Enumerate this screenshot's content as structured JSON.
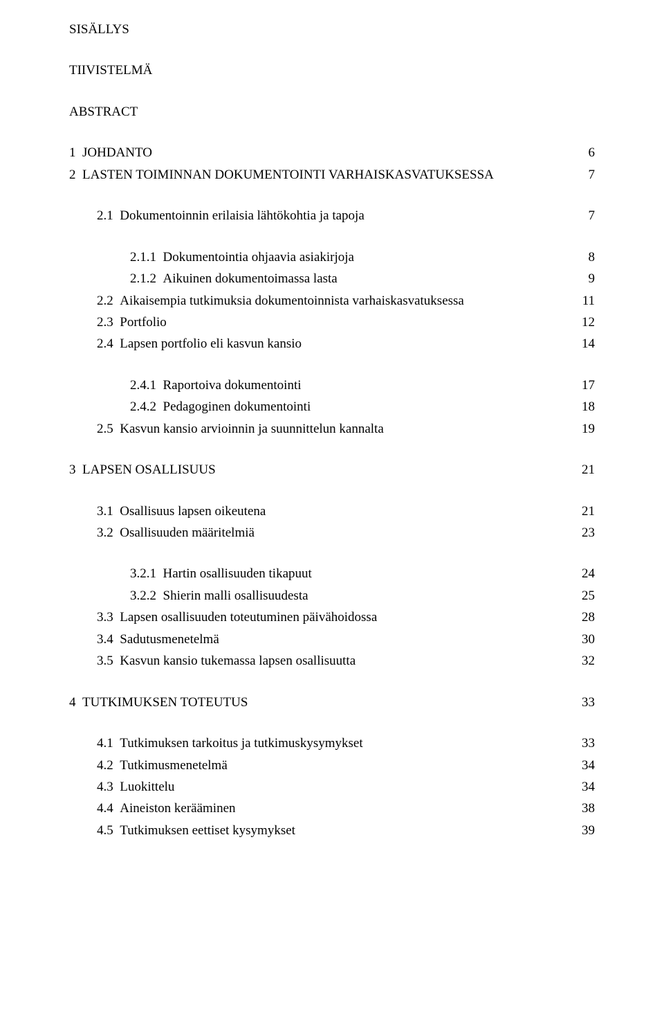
{
  "headings": {
    "sisallys": "SISÄLLYS",
    "tiivistelma": "TIIVISTELMÄ",
    "abstract": "ABSTRACT"
  },
  "toc": [
    {
      "indent": 0,
      "num": "1",
      "label": "JOHDANTO",
      "page": "6",
      "gap": "block"
    },
    {
      "indent": 0,
      "num": "2",
      "label": "LASTEN TOIMINNAN DOKUMENTOINTI VARHAISKASVATUKSESSA",
      "page": "7",
      "gap": "small"
    },
    {
      "indent": 1,
      "num": "2.1",
      "label": "Dokumentoinnin erilaisia lähtökohtia ja tapoja",
      "page": "7",
      "gap": "block"
    },
    {
      "indent": 2,
      "num": "2.1.1",
      "label": "Dokumentointia ohjaavia asiakirjoja",
      "page": "8",
      "gap": "block"
    },
    {
      "indent": 2,
      "num": "2.1.2",
      "label": "Aikuinen dokumentoimassa lasta",
      "page": "9",
      "gap": "small"
    },
    {
      "indent": 1,
      "num": "2.2",
      "label": "Aikaisempia tutkimuksia dokumentoinnista varhaiskasvatuksessa",
      "page": "11",
      "gap": "small"
    },
    {
      "indent": 1,
      "num": "2.3",
      "label": "Portfolio",
      "page": "12",
      "gap": "small"
    },
    {
      "indent": 1,
      "num": "2.4",
      "label": "Lapsen portfolio eli kasvun kansio",
      "page": "14",
      "gap": "small"
    },
    {
      "indent": 2,
      "num": "2.4.1",
      "label": "Raportoiva dokumentointi",
      "page": "17",
      "gap": "block"
    },
    {
      "indent": 2,
      "num": "2.4.2",
      "label": "Pedagoginen dokumentointi",
      "page": "18",
      "gap": "small"
    },
    {
      "indent": 1,
      "num": "2.5",
      "label": "Kasvun kansio arvioinnin ja suunnittelun kannalta",
      "page": "19",
      "gap": "small"
    },
    {
      "indent": 0,
      "num": "3",
      "label": "LAPSEN OSALLISUUS",
      "page": "21",
      "gap": "block"
    },
    {
      "indent": 1,
      "num": "3.1",
      "label": "Osallisuus lapsen oikeutena",
      "page": "21",
      "gap": "block"
    },
    {
      "indent": 1,
      "num": "3.2",
      "label": "Osallisuuden määritelmiä",
      "page": "23",
      "gap": "small"
    },
    {
      "indent": 2,
      "num": "3.2.1",
      "label": "Hartin osallisuuden tikapuut",
      "page": "24",
      "gap": "block"
    },
    {
      "indent": 2,
      "num": "3.2.2",
      "label": "Shierin malli osallisuudesta",
      "page": "25",
      "gap": "small"
    },
    {
      "indent": 1,
      "num": "3.3",
      "label": "Lapsen osallisuuden toteutuminen päivähoidossa",
      "page": "28",
      "gap": "small"
    },
    {
      "indent": 1,
      "num": "3.4",
      "label": "Sadutusmenetelmä",
      "page": "30",
      "gap": "small"
    },
    {
      "indent": 1,
      "num": "3.5",
      "label": "Kasvun kansio tukemassa lapsen osallisuutta",
      "page": "32",
      "gap": "small"
    },
    {
      "indent": 0,
      "num": "4",
      "label": "TUTKIMUKSEN TOTEUTUS",
      "page": "33",
      "gap": "block"
    },
    {
      "indent": 1,
      "num": "4.1",
      "label": "Tutkimuksen tarkoitus ja tutkimuskysymykset",
      "page": "33",
      "gap": "block"
    },
    {
      "indent": 1,
      "num": "4.2",
      "label": "Tutkimusmenetelmä",
      "page": "34",
      "gap": "small"
    },
    {
      "indent": 1,
      "num": "4.3",
      "label": "Luokittelu",
      "page": "34",
      "gap": "small"
    },
    {
      "indent": 1,
      "num": "4.4",
      "label": "Aineiston kerääminen",
      "page": "38",
      "gap": "small"
    },
    {
      "indent": 1,
      "num": "4.5",
      "label": "Tutkimuksen eettiset kysymykset",
      "page": "39",
      "gap": "small"
    }
  ]
}
